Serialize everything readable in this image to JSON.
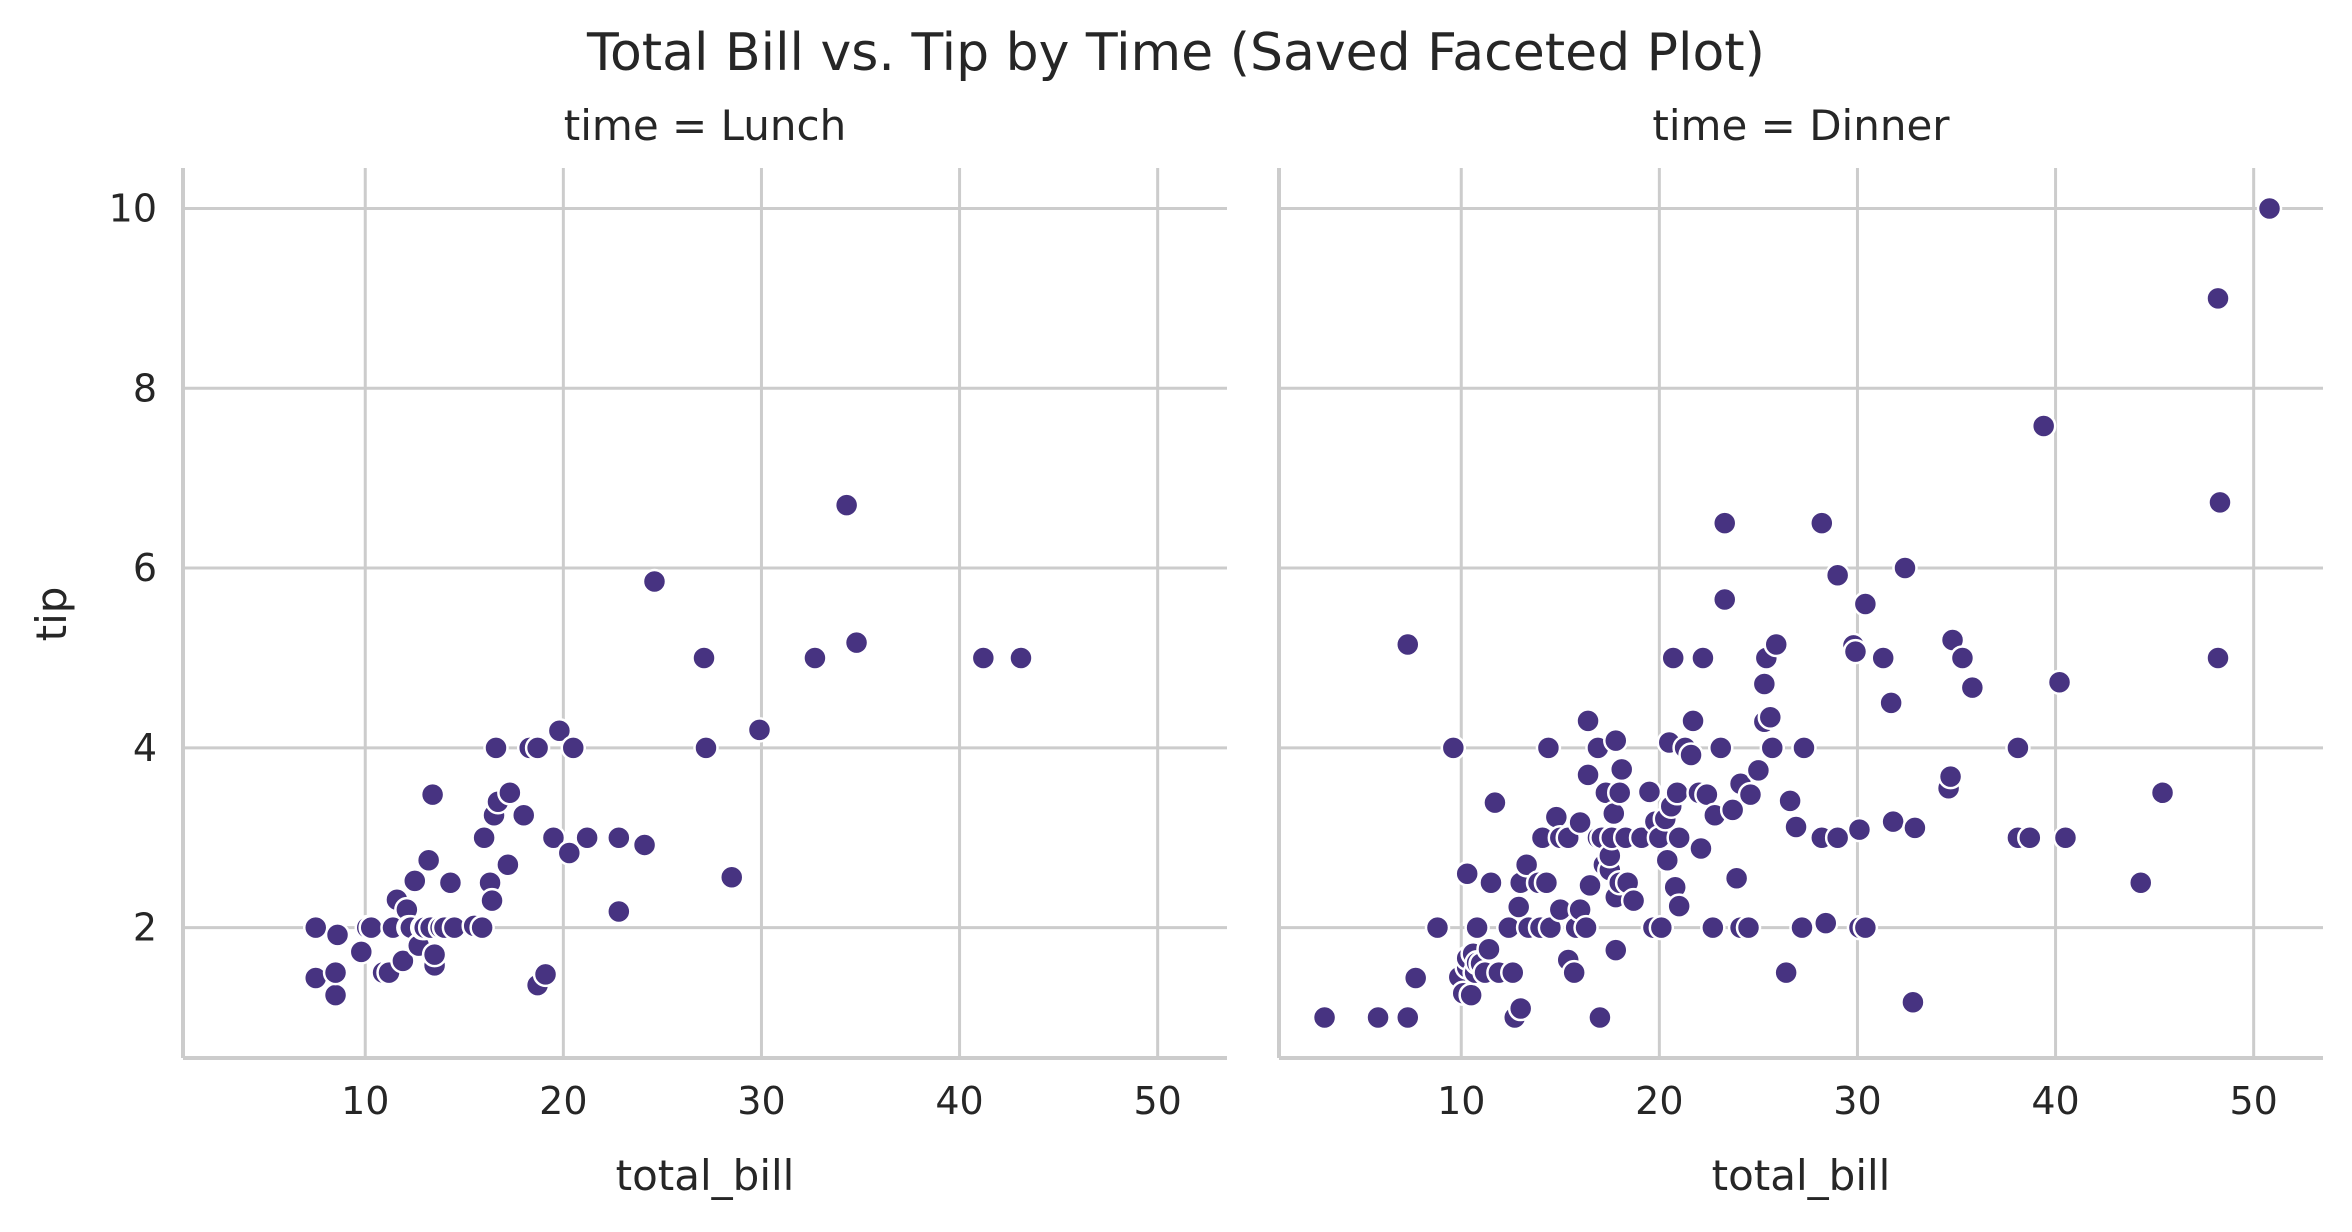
{
  "figure": {
    "title": "Total Bill vs. Tip by Time (Saved Faceted Plot)",
    "point_color": "#473381",
    "grid_color": "#cccccc"
  },
  "chart_data": [
    {
      "type": "scatter",
      "title": "time = Lunch",
      "xlabel": "total_bill",
      "ylabel": "tip",
      "xlim": [
        0.8,
        53.5
      ],
      "ylim": [
        0.55,
        10.45
      ],
      "x_ticks": [
        10,
        20,
        30,
        40,
        50
      ],
      "y_ticks": [
        2,
        4,
        6,
        8,
        10
      ],
      "grid": true,
      "points": [
        [
          7.5,
          2.0
        ],
        [
          7.5,
          1.44
        ],
        [
          8.5,
          1.25
        ],
        [
          8.5,
          1.5
        ],
        [
          8.6,
          1.92
        ],
        [
          9.8,
          1.73
        ],
        [
          10.1,
          2.0
        ],
        [
          10.3,
          2.0
        ],
        [
          10.9,
          1.5
        ],
        [
          11.2,
          1.5
        ],
        [
          11.4,
          2.0
        ],
        [
          11.6,
          2.31
        ],
        [
          11.9,
          1.63
        ],
        [
          12.1,
          2.2
        ],
        [
          12.2,
          2.0
        ],
        [
          12.3,
          2.0
        ],
        [
          12.5,
          2.52
        ],
        [
          12.7,
          1.8
        ],
        [
          12.9,
          2.0
        ],
        [
          13.0,
          2.0
        ],
        [
          13.2,
          2.75
        ],
        [
          13.3,
          2.0
        ],
        [
          13.4,
          3.48
        ],
        [
          13.5,
          1.58
        ],
        [
          13.5,
          1.7
        ],
        [
          13.8,
          2.0
        ],
        [
          14.0,
          2.0
        ],
        [
          14.3,
          2.5
        ],
        [
          14.5,
          2.0
        ],
        [
          15.5,
          2.02
        ],
        [
          15.9,
          2.0
        ],
        [
          16.0,
          3.0
        ],
        [
          16.3,
          2.5
        ],
        [
          16.4,
          2.3
        ],
        [
          16.5,
          3.25
        ],
        [
          16.6,
          4.0
        ],
        [
          16.7,
          3.4
        ],
        [
          17.2,
          2.7
        ],
        [
          17.3,
          3.5
        ],
        [
          18.0,
          3.25
        ],
        [
          18.3,
          4.0
        ],
        [
          18.7,
          4.0
        ],
        [
          18.7,
          1.36
        ],
        [
          19.1,
          1.48
        ],
        [
          19.5,
          3.0
        ],
        [
          19.8,
          4.19
        ],
        [
          20.3,
          2.83
        ],
        [
          20.5,
          4.0
        ],
        [
          21.2,
          3.0
        ],
        [
          22.8,
          3.0
        ],
        [
          22.8,
          2.18
        ],
        [
          24.1,
          2.92
        ],
        [
          24.6,
          5.85
        ],
        [
          27.1,
          5.0
        ],
        [
          27.2,
          4.0
        ],
        [
          28.5,
          2.56
        ],
        [
          29.9,
          4.2
        ],
        [
          32.7,
          5.0
        ],
        [
          34.3,
          6.7
        ],
        [
          34.8,
          5.17
        ],
        [
          41.2,
          5.0
        ],
        [
          43.1,
          5.0
        ]
      ]
    },
    {
      "type": "scatter",
      "title": "time = Dinner",
      "xlabel": "total_bill",
      "ylabel": "",
      "xlim": [
        0.8,
        53.5
      ],
      "ylim": [
        0.55,
        10.45
      ],
      "x_ticks": [
        10,
        20,
        30,
        40,
        50
      ],
      "y_ticks": [
        2,
        4,
        6,
        8,
        10
      ],
      "grid": true,
      "points": [
        [
          3.1,
          1.0
        ],
        [
          5.8,
          1.0
        ],
        [
          7.3,
          1.0
        ],
        [
          7.3,
          5.15
        ],
        [
          7.7,
          1.44
        ],
        [
          8.8,
          2.0
        ],
        [
          9.6,
          4.0
        ],
        [
          9.9,
          1.45
        ],
        [
          10.1,
          1.27
        ],
        [
          10.3,
          1.56
        ],
        [
          10.3,
          1.66
        ],
        [
          10.3,
          2.6
        ],
        [
          10.5,
          1.25
        ],
        [
          10.6,
          1.71
        ],
        [
          10.7,
          1.5
        ],
        [
          10.8,
          2.0
        ],
        [
          10.8,
          1.61
        ],
        [
          11.0,
          1.6
        ],
        [
          11.2,
          1.5
        ],
        [
          11.4,
          1.76
        ],
        [
          11.5,
          2.5
        ],
        [
          11.7,
          3.39
        ],
        [
          11.9,
          1.5
        ],
        [
          12.4,
          2.0
        ],
        [
          12.6,
          1.5
        ],
        [
          12.7,
          1.0
        ],
        [
          12.9,
          2.23
        ],
        [
          13.0,
          1.1
        ],
        [
          13.0,
          2.5
        ],
        [
          13.3,
          2.7
        ],
        [
          13.4,
          2.0
        ],
        [
          13.9,
          2.5
        ],
        [
          14.0,
          2.0
        ],
        [
          14.1,
          3.0
        ],
        [
          14.3,
          2.5
        ],
        [
          14.4,
          4.0
        ],
        [
          14.5,
          2.0
        ],
        [
          14.8,
          3.23
        ],
        [
          15.0,
          2.2
        ],
        [
          15.0,
          3.0
        ],
        [
          15.4,
          1.64
        ],
        [
          15.4,
          3.0
        ],
        [
          15.7,
          1.5
        ],
        [
          15.8,
          2.0
        ],
        [
          16.0,
          2.2
        ],
        [
          16.0,
          3.17
        ],
        [
          16.3,
          2.0
        ],
        [
          16.4,
          3.7
        ],
        [
          16.4,
          4.3
        ],
        [
          16.5,
          2.47
        ],
        [
          16.9,
          4.0
        ],
        [
          16.9,
          3.0
        ],
        [
          17.0,
          1.0
        ],
        [
          17.1,
          3.0
        ],
        [
          17.2,
          2.7
        ],
        [
          17.3,
          3.5
        ],
        [
          17.5,
          2.64
        ],
        [
          17.5,
          2.8
        ],
        [
          17.6,
          3.0
        ],
        [
          17.7,
          3.27
        ],
        [
          17.8,
          2.34
        ],
        [
          17.8,
          4.08
        ],
        [
          17.8,
          1.75
        ],
        [
          18.0,
          2.5
        ],
        [
          18.0,
          3.5
        ],
        [
          18.1,
          3.76
        ],
        [
          18.3,
          3.0
        ],
        [
          18.4,
          2.5
        ],
        [
          18.7,
          2.3
        ],
        [
          19.1,
          3.0
        ],
        [
          19.5,
          3.51
        ],
        [
          19.7,
          2.0
        ],
        [
          19.8,
          3.18
        ],
        [
          20.0,
          3.0
        ],
        [
          20.1,
          2.0
        ],
        [
          20.3,
          3.21
        ],
        [
          20.4,
          2.75
        ],
        [
          20.5,
          4.06
        ],
        [
          20.6,
          3.35
        ],
        [
          20.7,
          5.0
        ],
        [
          20.8,
          2.45
        ],
        [
          20.9,
          3.5
        ],
        [
          21.0,
          3.0
        ],
        [
          21.0,
          2.24
        ],
        [
          21.3,
          4.0
        ],
        [
          21.6,
          3.92
        ],
        [
          21.7,
          4.3
        ],
        [
          22.0,
          3.5
        ],
        [
          22.1,
          2.88
        ],
        [
          22.2,
          5.0
        ],
        [
          22.4,
          3.48
        ],
        [
          22.7,
          2.0
        ],
        [
          22.8,
          3.25
        ],
        [
          23.1,
          4.0
        ],
        [
          23.3,
          6.5
        ],
        [
          23.3,
          5.65
        ],
        [
          23.7,
          3.31
        ],
        [
          23.9,
          2.55
        ],
        [
          24.1,
          3.6
        ],
        [
          24.1,
          2.0
        ],
        [
          24.5,
          2.0
        ],
        [
          24.6,
          3.48
        ],
        [
          25.0,
          3.75
        ],
        [
          25.3,
          4.29
        ],
        [
          25.3,
          4.71
        ],
        [
          25.4,
          5.0
        ],
        [
          25.6,
          4.34
        ],
        [
          25.7,
          4.0
        ],
        [
          25.9,
          5.15
        ],
        [
          26.4,
          1.5
        ],
        [
          26.6,
          3.41
        ],
        [
          26.9,
          3.12
        ],
        [
          27.2,
          2.0
        ],
        [
          27.3,
          4.0
        ],
        [
          28.2,
          6.5
        ],
        [
          28.4,
          2.05
        ],
        [
          28.4,
          3.0
        ],
        [
          28.2,
          3.0
        ],
        [
          29.0,
          5.92
        ],
        [
          29.0,
          3.0
        ],
        [
          29.8,
          5.14
        ],
        [
          29.9,
          5.07
        ],
        [
          30.1,
          3.09
        ],
        [
          30.1,
          2.0
        ],
        [
          30.4,
          5.6
        ],
        [
          30.4,
          2.0
        ],
        [
          31.3,
          5.0
        ],
        [
          31.7,
          4.5
        ],
        [
          31.8,
          3.18
        ],
        [
          32.4,
          6.0
        ],
        [
          32.8,
          1.17
        ],
        [
          32.9,
          3.11
        ],
        [
          34.6,
          3.55
        ],
        [
          34.7,
          3.68
        ],
        [
          34.8,
          5.2
        ],
        [
          35.3,
          5.0
        ],
        [
          35.8,
          4.67
        ],
        [
          38.1,
          4.0
        ],
        [
          38.1,
          3.0
        ],
        [
          38.7,
          3.0
        ],
        [
          39.4,
          7.58
        ],
        [
          40.2,
          4.73
        ],
        [
          40.5,
          3.0
        ],
        [
          44.3,
          2.5
        ],
        [
          45.4,
          3.5
        ],
        [
          48.2,
          5.0
        ],
        [
          48.3,
          6.73
        ],
        [
          48.3,
          9.0
        ],
        [
          48.2,
          9.0
        ],
        [
          50.8,
          10.0
        ]
      ]
    }
  ]
}
